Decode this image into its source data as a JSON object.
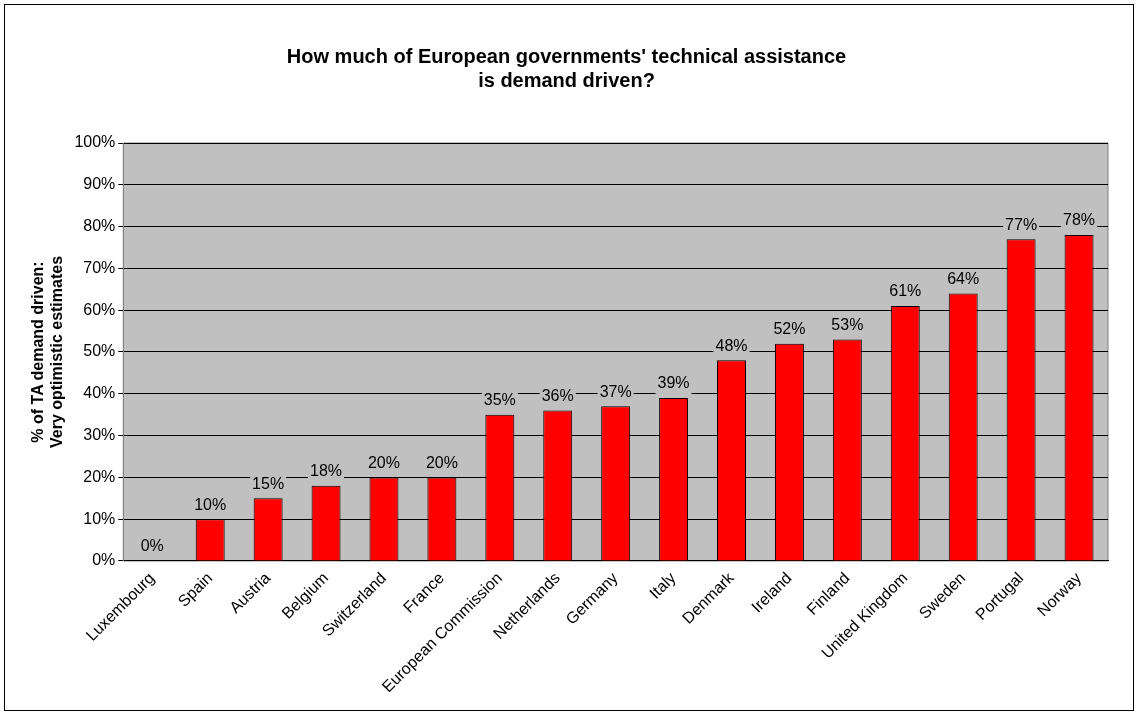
{
  "chart_data": {
    "type": "bar",
    "title": "How much of European governments' technical assistance\nis demand driven?",
    "ylabel": "% of TA demand driven:\nVery optimistic estimates",
    "categories": [
      "Luxembourg",
      "Spain",
      "Austria",
      "Belgium",
      "Switzerland",
      "France",
      "European Commission",
      "Netherlands",
      "Germany",
      "Italy",
      "Denmark",
      "Ireland",
      "Finland",
      "United Kingdom",
      "Sweden",
      "Portugal",
      "Norway"
    ],
    "values": [
      0,
      10,
      15,
      18,
      20,
      20,
      35,
      36,
      37,
      39,
      48,
      52,
      53,
      61,
      64,
      77,
      78
    ],
    "value_labels": [
      "0%",
      "10%",
      "15%",
      "18%",
      "20%",
      "20%",
      "35%",
      "36%",
      "37%",
      "39%",
      "48%",
      "52%",
      "53%",
      "61%",
      "64%",
      "77%",
      "78%"
    ],
    "color": "#ff0000",
    "ylim": [
      0,
      100
    ],
    "yticks": [
      {
        "value": 0,
        "label": "0%"
      },
      {
        "value": 10,
        "label": "10%"
      },
      {
        "value": 20,
        "label": "20%"
      },
      {
        "value": 30,
        "label": "30%"
      },
      {
        "value": 40,
        "label": "40%"
      },
      {
        "value": 50,
        "label": "50%"
      },
      {
        "value": 60,
        "label": "60%"
      },
      {
        "value": 70,
        "label": "70%"
      },
      {
        "value": 80,
        "label": "80%"
      },
      {
        "value": 90,
        "label": "90%"
      },
      {
        "value": 100,
        "label": "100%"
      }
    ],
    "grid": "y",
    "legend": false
  }
}
